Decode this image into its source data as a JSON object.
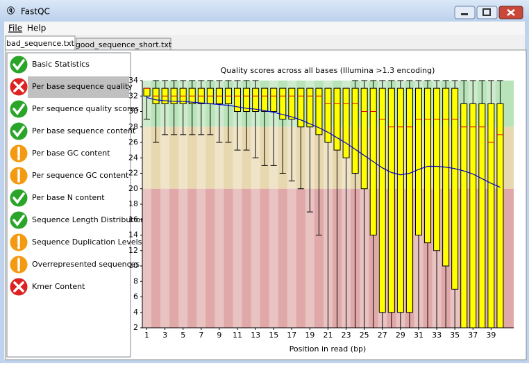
{
  "window": {
    "title": "FastQC"
  },
  "menu": [
    "File",
    "Help"
  ],
  "tabs": [
    {
      "label": "bad_sequence.txt",
      "selected": true
    },
    {
      "label": "good_sequence_short.txt",
      "selected": false
    }
  ],
  "modules": [
    {
      "label": "Basic Statistics",
      "status": "pass",
      "selected": false
    },
    {
      "label": "Per base sequence quality",
      "status": "fail",
      "selected": true
    },
    {
      "label": "Per sequence quality scores",
      "status": "pass",
      "selected": false
    },
    {
      "label": "Per base sequence content",
      "status": "pass",
      "selected": false
    },
    {
      "label": "Per base GC content",
      "status": "warn",
      "selected": false
    },
    {
      "label": "Per sequence GC content",
      "status": "warn",
      "selected": false
    },
    {
      "label": "Per base N content",
      "status": "pass",
      "selected": false
    },
    {
      "label": "Sequence Length Distribution",
      "status": "pass",
      "selected": false
    },
    {
      "label": "Sequence Duplication Levels",
      "status": "warn",
      "selected": false
    },
    {
      "label": "Overrepresented sequences",
      "status": "warn",
      "selected": false
    },
    {
      "label": "Kmer Content",
      "status": "fail",
      "selected": false
    }
  ],
  "chart_data": {
    "type": "box",
    "title": "Quality scores across all bases (Illumina >1.3 encoding)",
    "x_label": "Position in read (bp)",
    "x": [
      1,
      2,
      3,
      4,
      5,
      6,
      7,
      8,
      9,
      10,
      11,
      12,
      13,
      14,
      15,
      16,
      17,
      18,
      19,
      20,
      21,
      22,
      23,
      24,
      25,
      26,
      27,
      28,
      29,
      30,
      31,
      32,
      33,
      34,
      35,
      36,
      37,
      38,
      39,
      40
    ],
    "whisker_low": [
      29,
      26,
      27,
      27,
      27,
      27,
      27,
      27,
      26,
      26,
      25,
      25,
      24,
      23,
      23,
      22,
      21,
      20,
      17,
      14,
      2,
      2,
      2,
      2,
      2,
      2,
      2,
      2,
      2,
      2,
      2,
      2,
      2,
      2,
      2,
      2,
      2,
      2,
      2,
      2
    ],
    "q1": [
      32,
      31,
      31,
      31,
      31,
      31,
      31,
      31,
      31,
      31,
      30,
      30,
      30,
      30,
      30,
      29,
      29,
      28,
      28,
      27,
      26,
      25,
      24,
      22,
      20,
      14,
      4,
      4,
      4,
      4,
      14,
      13,
      12,
      10,
      7,
      2,
      2,
      2,
      2,
      2
    ],
    "median": [
      33,
      32,
      32,
      32,
      32,
      32,
      32,
      32,
      32,
      32,
      32,
      32,
      32,
      32,
      32,
      32,
      32,
      32,
      32,
      32,
      31,
      31,
      31,
      31,
      30,
      30,
      29,
      28,
      28,
      28,
      29,
      29,
      29,
      29,
      29,
      28,
      28,
      28,
      26,
      27
    ],
    "q3": [
      33,
      33,
      33,
      33,
      33,
      33,
      33,
      33,
      33,
      33,
      33,
      33,
      33,
      33,
      33,
      33,
      33,
      33,
      33,
      33,
      33,
      33,
      33,
      33,
      33,
      33,
      33,
      33,
      33,
      33,
      33,
      33,
      33,
      33,
      33,
      31,
      31,
      31,
      31,
      31
    ],
    "whisker_high": [
      33,
      34,
      34,
      34,
      34,
      34,
      34,
      34,
      34,
      34,
      34,
      34,
      34,
      33,
      33,
      33,
      33,
      33,
      33,
      33,
      33,
      33,
      33,
      34,
      34,
      34,
      34,
      34,
      34,
      34,
      34,
      34,
      34,
      34,
      34,
      34,
      34,
      34,
      34,
      34
    ],
    "mean": [
      31.8,
      31.5,
      31.4,
      31.3,
      31.3,
      31.2,
      31.1,
      31,
      30.9,
      30.8,
      30.6,
      30.4,
      30.3,
      30.1,
      29.9,
      29.6,
      29.3,
      28.9,
      28.4,
      27.9,
      27.3,
      26.6,
      25.9,
      25.1,
      24.3,
      23.5,
      22.7,
      22.1,
      21.8,
      22,
      22.5,
      22.9,
      22.9,
      22.8,
      22.6,
      22.3,
      21.9,
      21.3,
      20.7,
      20.2
    ],
    "box_color": "#ffff00",
    "median_color": "#e00000",
    "mean_color": "#0000c8",
    "bands": [
      {
        "from": 28,
        "to": 34,
        "color": "#b9e3b9"
      },
      {
        "from": 20,
        "to": 28,
        "color": "#e8d8b0"
      },
      {
        "from": 2,
        "to": 20,
        "color": "#e0a8a8"
      }
    ],
    "xlim": [
      0.5,
      41.5
    ],
    "ylim": [
      2,
      34
    ],
    "xticks": [
      1,
      3,
      5,
      7,
      9,
      11,
      13,
      15,
      17,
      19,
      21,
      23,
      25,
      27,
      29,
      31,
      33,
      35,
      37,
      39
    ],
    "yticks": [
      2,
      4,
      6,
      8,
      10,
      12,
      14,
      16,
      18,
      20,
      22,
      24,
      26,
      28,
      30,
      32,
      34
    ]
  }
}
